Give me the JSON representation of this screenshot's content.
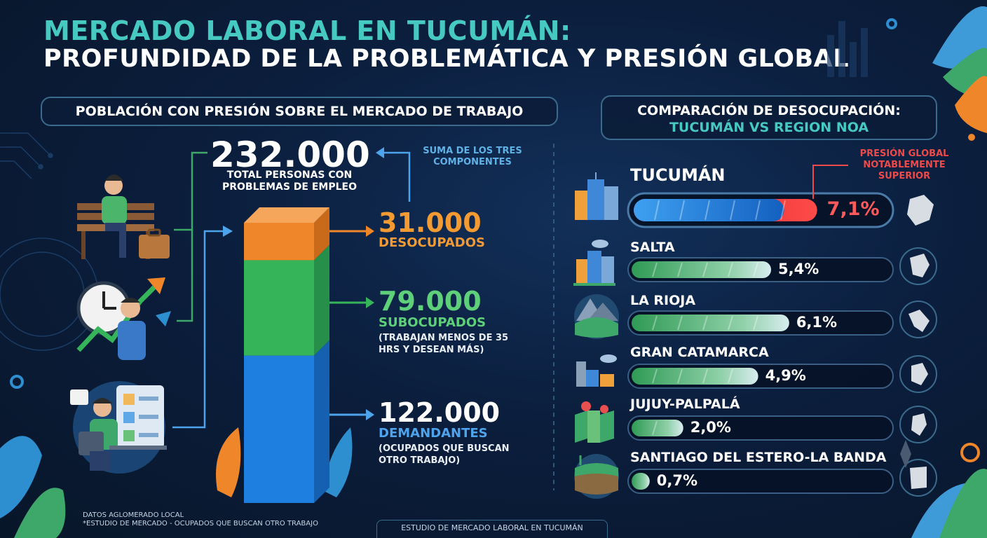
{
  "header": {
    "title_line1": "MERCADO LABORAL EN TUCUMÁN:",
    "title_line2": "PROFUNDIDAD DE LA PROBLEMÁTICA Y PRESIÓN GLOBAL"
  },
  "left_panel": {
    "heading": "POBLACIÓN CON PRESIÓN SOBRE EL MERCADO DE TRABAJO",
    "total_value": "232.000",
    "total_label": "TOTAL PERSONAS CON PROBLEMAS DE EMPLEO",
    "sum_note": "SUMA DE LOS TRES COMPONENTES"
  },
  "right_panel": {
    "heading_line1": "COMPARACIÓN DE DESOCUPACIÓN:",
    "heading_line2": "TUCUMÁN VS REGION NOA",
    "pressure_note": "PRESIÓN GLOBAL NOTABLEMENTE SUPERIOR"
  },
  "footer": {
    "note_line1": "DATOS AGLOMERADO LOCAL",
    "note_line2": "*ESTUDIO DE MERCADO - OCUPADOS QUE BUSCAN OTRO TRABAJO",
    "center": "ESTUDIO DE MERCADO LABORAL EN TUCUMÁN"
  },
  "chart_data": [
    {
      "type": "bar",
      "stacked": true,
      "orientation": "vertical",
      "total": 232000,
      "series": [
        {
          "name": "DESOCUPADOS",
          "value": 31000,
          "value_label": "31.000",
          "note": "",
          "color": "#f0862a"
        },
        {
          "name": "SUBOCUPADOS",
          "value": 79000,
          "value_label": "79.000",
          "note": "(TRABAJAN MENOS DE 35 HRS Y DESEAN MÁS)",
          "color": "#35b45a"
        },
        {
          "name": "DEMANDANTES",
          "value": 122000,
          "value_label": "122.000",
          "note": "(OCUPADOS QUE BUSCAN OTRO TRABAJO)",
          "color": "#1f7fe0"
        }
      ]
    },
    {
      "type": "bar",
      "orientation": "horizontal",
      "unit": "%",
      "xlim": [
        0,
        8
      ],
      "categories": [
        "TUCUMÁN",
        "SALTA",
        "LA RIOJA",
        "GRAN CATAMARCA",
        "JUJUY-PALPALÁ",
        "SANTIAGO DEL ESTERO-LA BANDA"
      ],
      "values": [
        7.1,
        5.4,
        6.1,
        4.9,
        2.0,
        0.7
      ],
      "value_labels": [
        "7,1%",
        "5,4%",
        "6,1%",
        "4,9%",
        "2,0%",
        "0,7%"
      ],
      "colors": {
        "highlight": "#1e88e5",
        "highlight_excess": "#e53935",
        "others": "#2fa866"
      }
    }
  ]
}
